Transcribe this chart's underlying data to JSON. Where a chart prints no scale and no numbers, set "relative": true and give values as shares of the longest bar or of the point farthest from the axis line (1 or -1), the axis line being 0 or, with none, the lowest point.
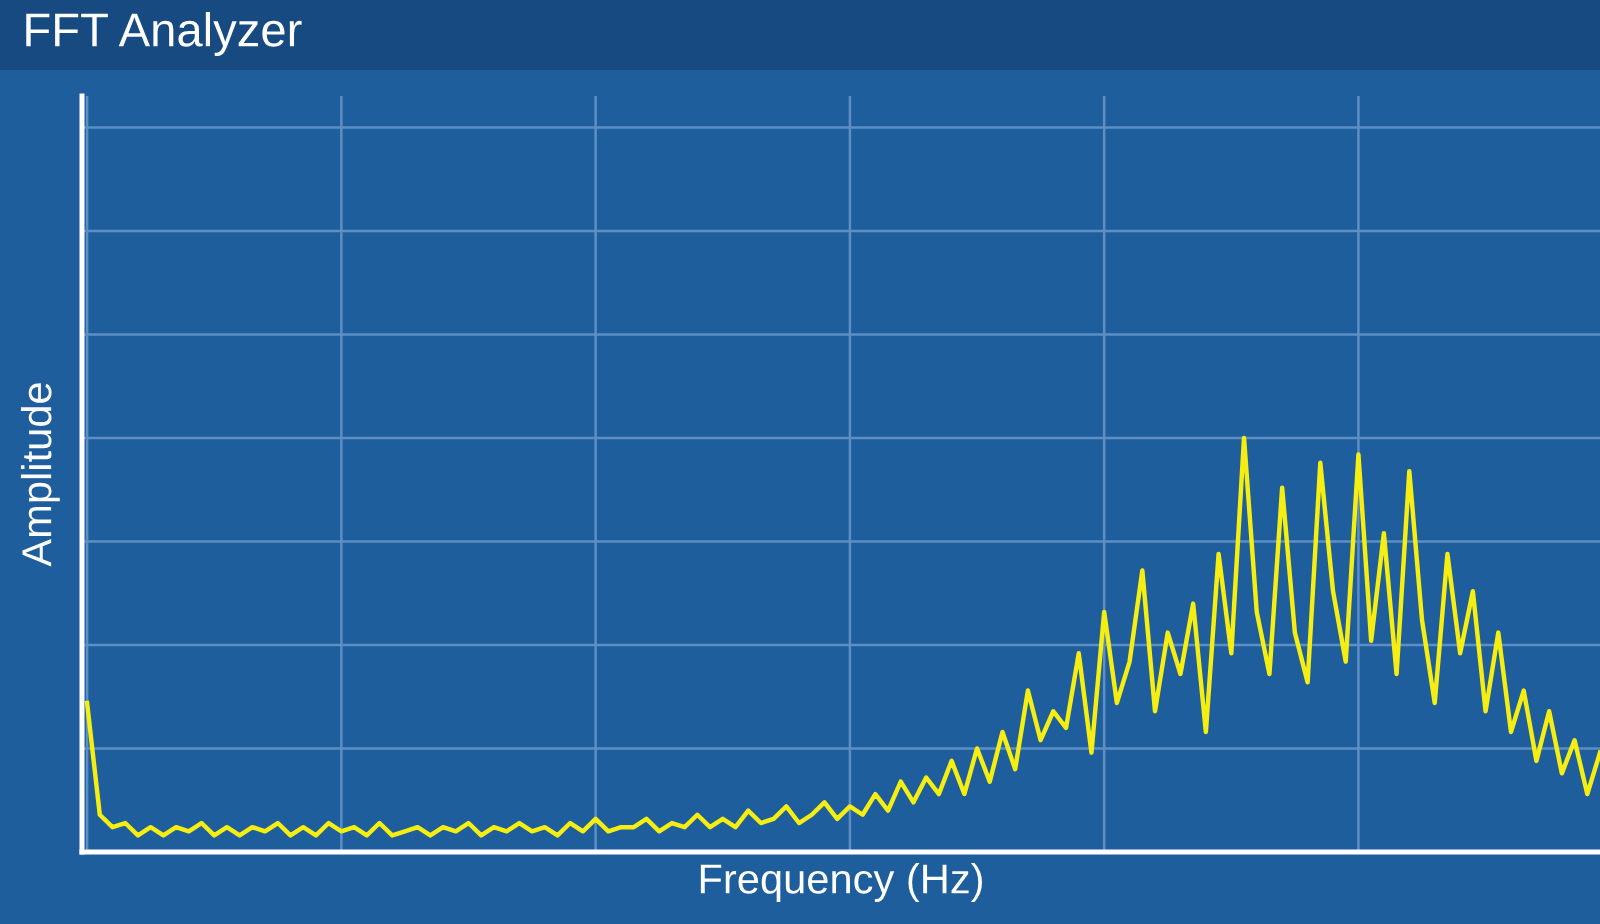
{
  "chart_data": {
    "type": "line",
    "title": "FFT Analyzer",
    "xlabel": "Frequency (Hz)",
    "ylabel": "Amplitude",
    "relative": true,
    "grid": true,
    "legend": false,
    "categories": [
      null,
      null,
      null,
      null,
      null,
      null,
      null,
      null,
      null,
      null,
      null,
      null,
      null,
      null,
      null,
      null,
      null,
      null,
      null,
      null,
      null,
      null,
      null,
      null,
      null,
      null,
      null,
      null,
      null,
      null,
      null,
      null,
      null,
      null,
      null,
      null,
      null,
      null,
      null,
      null,
      null,
      null,
      null,
      null,
      null,
      null,
      null,
      null,
      null,
      null,
      null,
      null,
      null,
      null,
      null,
      null,
      null,
      null,
      null,
      null,
      null,
      null,
      null,
      null,
      null,
      null,
      null,
      null,
      null,
      null,
      null,
      null,
      null,
      null,
      null,
      null,
      null,
      null,
      null,
      null,
      null,
      null,
      null,
      null,
      null,
      null,
      null,
      null,
      null,
      null,
      null,
      null,
      null,
      null,
      null,
      null,
      null,
      null,
      null,
      null,
      null,
      null,
      null,
      null,
      null,
      null,
      null,
      null,
      null,
      null,
      null,
      null,
      null,
      null,
      null,
      null,
      null,
      null,
      null,
      null
    ],
    "series": [
      {
        "color": "#f5ee10",
        "values": [
          0.36,
          0.09,
          0.06,
          0.07,
          0.04,
          0.06,
          0.04,
          0.06,
          0.05,
          0.07,
          0.04,
          0.06,
          0.04,
          0.06,
          0.05,
          0.07,
          0.04,
          0.06,
          0.04,
          0.07,
          0.05,
          0.06,
          0.04,
          0.07,
          0.04,
          0.05,
          0.06,
          0.04,
          0.06,
          0.05,
          0.07,
          0.04,
          0.06,
          0.05,
          0.07,
          0.05,
          0.06,
          0.04,
          0.07,
          0.05,
          0.08,
          0.05,
          0.06,
          0.06,
          0.08,
          0.05,
          0.07,
          0.06,
          0.09,
          0.06,
          0.08,
          0.06,
          0.1,
          0.07,
          0.08,
          0.11,
          0.07,
          0.09,
          0.12,
          0.08,
          0.11,
          0.09,
          0.14,
          0.1,
          0.17,
          0.12,
          0.18,
          0.14,
          0.22,
          0.14,
          0.25,
          0.17,
          0.29,
          0.2,
          0.39,
          0.27,
          0.34,
          0.3,
          0.48,
          0.24,
          0.58,
          0.36,
          0.46,
          0.68,
          0.34,
          0.53,
          0.43,
          0.6,
          0.29,
          0.72,
          0.48,
          1,
          0.58,
          0.43,
          0.88,
          0.53,
          0.41,
          0.94,
          0.63,
          0.46,
          0.96,
          0.51,
          0.77,
          0.43,
          0.92,
          0.56,
          0.36,
          0.72,
          0.48,
          0.63,
          0.34,
          0.53,
          0.29,
          0.39,
          0.22,
          0.34,
          0.19,
          0.27,
          0.14,
          0.24
        ]
      }
    ]
  }
}
